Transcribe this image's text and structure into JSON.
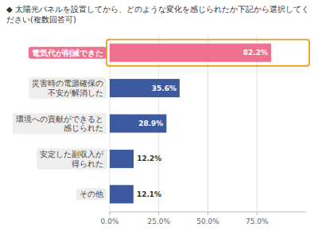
{
  "chart_data": {
    "type": "bar",
    "orientation": "horizontal",
    "title": "◆ 太陽光パネルを設置してから、どのような変化を感じられたか下記から選択してください(複数回答可)",
    "categories": [
      "電気代が削減できた",
      "災害時の電源確保の\n不安が解消した",
      "環境への貢献ができると\n感じられた",
      "安定した副収入が\n得られた",
      "その他"
    ],
    "values": [
      82.2,
      35.6,
      28.9,
      12.2,
      12.1
    ],
    "value_labels": [
      "82.2%",
      "35.6%",
      "28.9%",
      "12.2%",
      "12.1%"
    ],
    "colors": [
      "#f07090",
      "#3d5a9e",
      "#3d5a9e",
      "#3d5a9e",
      "#3d5a9e"
    ],
    "xlim": [
      0,
      100
    ],
    "xticks": [
      {
        "value": 0,
        "label": "0.0%"
      },
      {
        "value": 25,
        "label": "25.0%"
      },
      {
        "value": 50,
        "label": "50.0%"
      },
      {
        "value": 75,
        "label": "75.0%"
      }
    ],
    "grid": true,
    "data_labels": true
  }
}
